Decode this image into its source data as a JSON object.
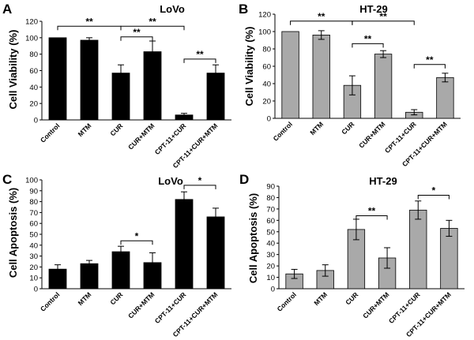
{
  "chart_data": [
    {
      "panel": "A",
      "type": "bar",
      "title": "LoVo",
      "ylabel": "Cell Viability (%)",
      "xlabel": "",
      "ylim": [
        0,
        120
      ],
      "yticks": [
        0,
        20,
        40,
        60,
        80,
        100,
        120
      ],
      "bar_color": "#000000",
      "categories": [
        "Control",
        "MTM",
        "CUR",
        "CUR+MTM",
        "CPT-11+CUR",
        "CPT-11+CUR+MTM"
      ],
      "values": [
        100,
        97,
        57,
        83,
        6,
        57
      ],
      "errors": [
        0,
        3,
        10,
        13,
        2,
        10
      ],
      "significance": [
        {
          "from": 0,
          "to": 2,
          "label": "**",
          "y": 114
        },
        {
          "from": 2,
          "to": 4,
          "label": "**",
          "y": 114
        },
        {
          "from": 2,
          "to": 3,
          "label": "**",
          "y": 101
        },
        {
          "from": 4,
          "to": 5,
          "label": "**",
          "y": 74
        }
      ]
    },
    {
      "panel": "B",
      "type": "bar",
      "title": "HT-29",
      "ylabel": "Cell Viability (%)",
      "xlabel": "",
      "ylim": [
        0,
        120
      ],
      "yticks": [
        0,
        20,
        40,
        60,
        80,
        100,
        120
      ],
      "bar_color": "#a9a9a9",
      "categories": [
        "Control",
        "MTM",
        "CUR",
        "CUR+MTM",
        "CPT-11+CUR",
        "CPT-11+CUR+MTM"
      ],
      "values": [
        100,
        96,
        38,
        74,
        7,
        47
      ],
      "errors": [
        0,
        5,
        11,
        4,
        3,
        5
      ],
      "significance": [
        {
          "from": 0,
          "to": 2,
          "label": "**",
          "y": 112
        },
        {
          "from": 2,
          "to": 4,
          "label": "**",
          "y": 112
        },
        {
          "from": 2,
          "to": 3,
          "label": "**",
          "y": 86
        },
        {
          "from": 4,
          "to": 5,
          "label": "**",
          "y": 62
        }
      ]
    },
    {
      "panel": "C",
      "type": "bar",
      "title": "LoVo",
      "ylabel": "Cell Apoptosis (%)",
      "xlabel": "",
      "ylim": [
        0,
        100
      ],
      "yticks": [
        0,
        10,
        20,
        30,
        40,
        50,
        60,
        70,
        80,
        90,
        100
      ],
      "bar_color": "#000000",
      "categories": [
        "Control",
        "MTM",
        "CUR",
        "CUR+MTM",
        "CPT-11+CUR",
        "CPT-11+CUR+MTM"
      ],
      "values": [
        18,
        23,
        34,
        24,
        82,
        66
      ],
      "errors": [
        4,
        3,
        5,
        9,
        7,
        8
      ],
      "significance": [
        {
          "from": 2,
          "to": 3,
          "label": "*",
          "y": 44
        },
        {
          "from": 4,
          "to": 5,
          "label": "*",
          "y": 95
        }
      ]
    },
    {
      "panel": "D",
      "type": "bar",
      "title": "HT-29",
      "ylabel": "Cell Apoptosis (%)",
      "xlabel": "",
      "ylim": [
        0,
        90
      ],
      "yticks": [
        0,
        10,
        20,
        30,
        40,
        50,
        60,
        70,
        80,
        90
      ],
      "bar_color": "#a9a9a9",
      "categories": [
        "Control",
        "MTM",
        "CUR",
        "CUR+MTM",
        "CPT-11+CUR",
        "CPT-11+CUR+MTM"
      ],
      "values": [
        13,
        16,
        52,
        27,
        69,
        53
      ],
      "errors": [
        4,
        5,
        9,
        9,
        8,
        7
      ],
      "significance": [
        {
          "from": 2,
          "to": 3,
          "label": "**",
          "y": 64
        },
        {
          "from": 4,
          "to": 5,
          "label": "*",
          "y": 82
        }
      ]
    }
  ]
}
